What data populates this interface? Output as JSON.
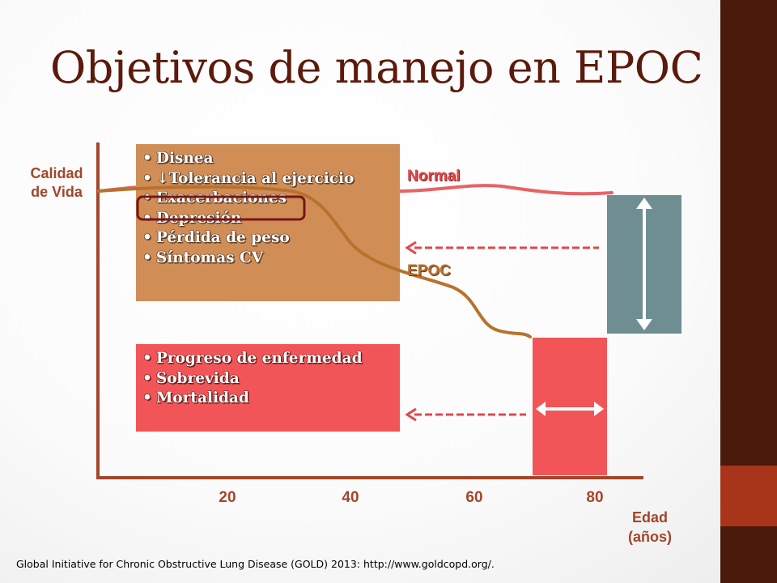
{
  "slide": {
    "title": "Objetivos de manejo en EPOC",
    "citation": "Global Initiative for Chronic Obstructive Lung Disease (GOLD) 2013: http://www.goldcopd.org/."
  },
  "axes": {
    "y_label_line1": "Calidad",
    "y_label_line2": "de Vida",
    "x_label_line1": "Edad",
    "x_label_line2": "(años)",
    "x_ticks": [
      "20",
      "40",
      "60",
      "80"
    ]
  },
  "curves": {
    "normal_label": "Normal",
    "epoc_label": "EPOC"
  },
  "boxes": {
    "symptoms": {
      "items": [
        {
          "text": "Disnea"
        },
        {
          "text": "Tolerancia al ejercicio",
          "prefix": "↓"
        },
        {
          "text": "Exacerbaciones",
          "highlighted": true
        },
        {
          "text": "Depresión"
        },
        {
          "text": "Pérdida de peso"
        },
        {
          "text": "Síntomas CV"
        }
      ]
    },
    "outcomes": {
      "items": [
        {
          "text": "Progreso de enfermedad"
        },
        {
          "text": "Sobrevida"
        },
        {
          "text": "Mortalidad"
        }
      ]
    }
  },
  "colors": {
    "title": "#5c1a0c",
    "sidebar": "#4a1a0c",
    "sidebar_accent": "#a8341a",
    "symptoms_box": "#d08e56",
    "outcomes_box": "#f25557",
    "quality_gap_box": "#6e8e92",
    "survival_gap_box": "#f25557",
    "axis": "#a3452a",
    "normal_curve": "#e4474b",
    "epoc_curve": "#b8722e"
  }
}
